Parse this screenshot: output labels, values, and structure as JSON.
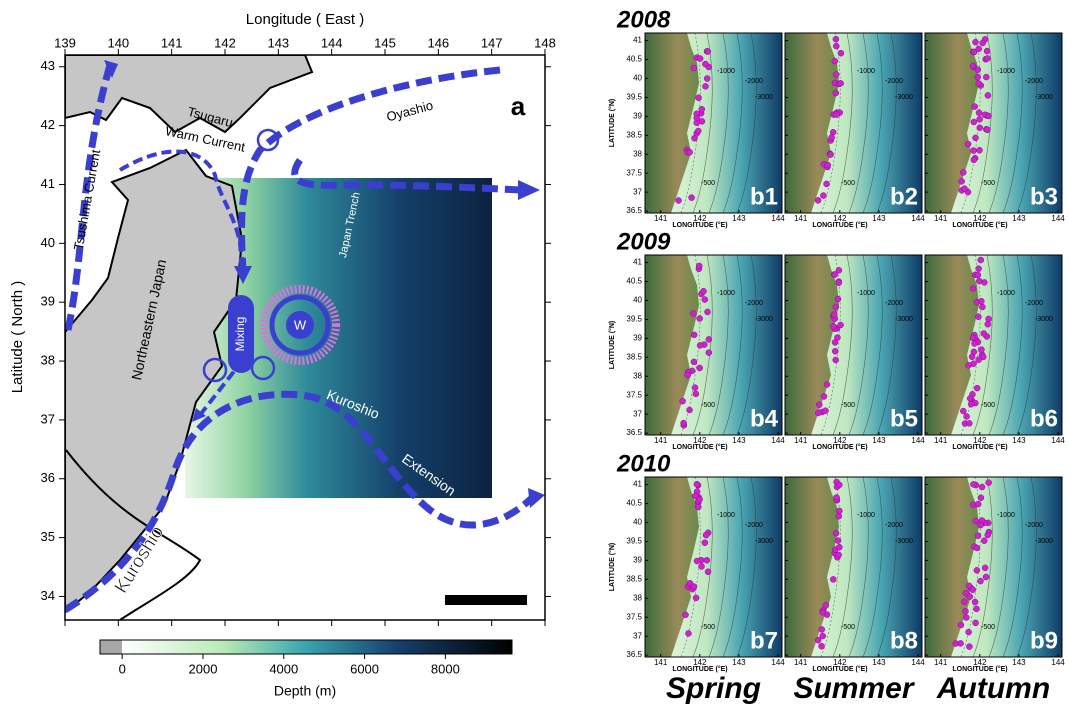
{
  "main_map": {
    "panel_label": "a",
    "x_label": "Longitude ( East )",
    "y_label": "Latitude ( North )",
    "lonlim": [
      139,
      148
    ],
    "latlim": [
      33.6,
      43.2
    ],
    "lon_ticks": [
      139,
      140,
      141,
      142,
      143,
      144,
      145,
      146,
      147,
      148
    ],
    "lat_ticks": [
      34,
      35,
      36,
      37,
      38,
      39,
      40,
      41,
      42,
      43
    ],
    "labels": {
      "tsushima": "Tsushima Current",
      "tsugaru": "Tsugaru",
      "warm": "Warm Current",
      "oyashio": "Oyashio",
      "ne_japan": "Northeastern Japan",
      "trench": "Japan Trench",
      "mixing": "Mixing",
      "w": "W",
      "kuroshio": "Kuroshio",
      "kuroshio_ext_1": "Kuroshio",
      "kuroshio_ext_2": "Extension"
    },
    "colorbar": {
      "label": "Depth (m)",
      "lim": [
        -550,
        9650
      ],
      "ticks": [
        0,
        2000,
        4000,
        6000,
        8000
      ]
    }
  },
  "small_maps": {
    "years": [
      "2008",
      "2009",
      "2010"
    ],
    "seasons": [
      "Spring",
      "Summer",
      "Autumn"
    ],
    "panel_labels": [
      "b1",
      "b2",
      "b3",
      "b4",
      "b5",
      "b6",
      "b7",
      "b8",
      "b9"
    ],
    "lonlim": [
      140.6,
      144.1
    ],
    "latlim": [
      36.45,
      41.2
    ],
    "lon_ticks": [
      141,
      142,
      143,
      144
    ],
    "lat_ticks": [
      36.5,
      37,
      37.5,
      38,
      38.5,
      39,
      39.5,
      40,
      40.5,
      41
    ],
    "x_label": "LONGITUDE (°E)",
    "y_label": "LATITUDE (°N)",
    "contour_labels": [
      -500,
      -1000,
      -2000,
      -3000
    ]
  }
}
